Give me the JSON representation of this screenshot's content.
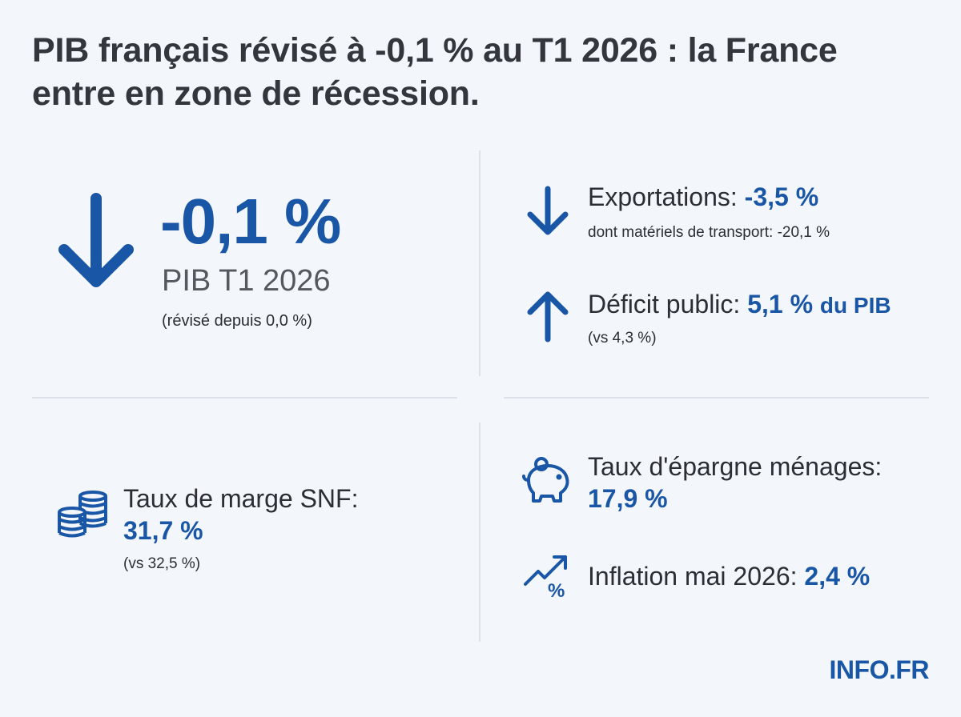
{
  "title": "PIB français révisé à -0,1 % au T1 2026 : la France entre en zone de récession.",
  "gdp": {
    "value": "-0,1 %",
    "label": "PIB T1 2026",
    "note": "(révisé depuis 0,0 %)"
  },
  "exports": {
    "label": "Exportations:",
    "value": "-3,5 %",
    "note": "dont matériels de transport: -20,1 %"
  },
  "deficit": {
    "label": "Déficit public:",
    "value": "5,1 %",
    "value_suffix": "du PIB",
    "note": "(vs 4,3 %)"
  },
  "margin": {
    "label": "Taux de marge SNF:",
    "value": "31,7 %",
    "note": "(vs 32,5 %)"
  },
  "savings": {
    "label": "Taux d'épargne ménages:",
    "value": "17,9 %"
  },
  "inflation": {
    "label": "Inflation mai 2026:",
    "value": "2,4 %"
  },
  "brand": "INFO.FR",
  "icons": {
    "gdp": "arrow-down-icon",
    "exports": "arrow-down-icon",
    "deficit": "arrow-up-icon",
    "margin": "coins-stack-icon",
    "savings": "piggy-bank-icon",
    "inflation": "trend-up-percent-icon"
  },
  "colors": {
    "accent": "#1a56a6",
    "text": "#2b2e35",
    "background": "#f3f6fa",
    "divider": "#dde2ea"
  }
}
